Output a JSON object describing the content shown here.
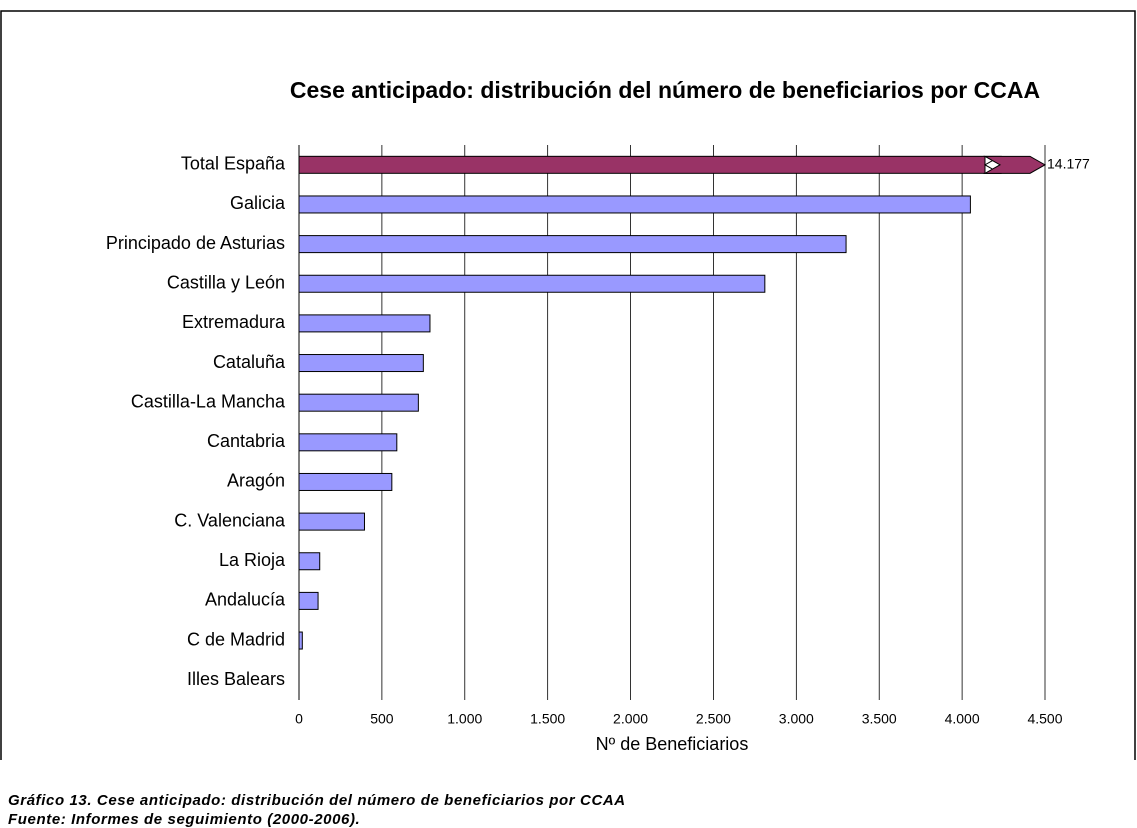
{
  "chart_data": {
    "type": "hbar",
    "title": "Cese anticipado: distribución del número de beneficiarios por CCAA",
    "categories": [
      "Total España",
      "Galicia",
      "Principado de Asturias",
      "Castilla y León",
      "Extremadura",
      "Cataluña",
      "Castilla-La Mancha",
      "Cantabria",
      "Aragón",
      "C.  Valenciana",
      "La Rioja",
      "Andalucía",
      "C de Madrid",
      "Illes Balears"
    ],
    "values": [
      14177,
      4050,
      3300,
      2810,
      790,
      750,
      720,
      590,
      560,
      395,
      125,
      115,
      20,
      0
    ],
    "value_labels": [
      "14.177",
      null,
      null,
      null,
      null,
      null,
      null,
      null,
      null,
      null,
      null,
      null,
      null,
      null
    ],
    "colors": [
      "#993366",
      "#9999ff",
      "#9999ff",
      "#9999ff",
      "#9999ff",
      "#9999ff",
      "#9999ff",
      "#9999ff",
      "#9999ff",
      "#9999ff",
      "#9999ff",
      "#9999ff",
      "#9999ff",
      "#9999ff"
    ],
    "xlabel": "Nº de Beneficiarios",
    "xlim": [
      0,
      4500
    ],
    "xticks": [
      0,
      500,
      {
        "value": 1000,
        "label": "1.000"
      },
      {
        "value": 1500,
        "label": "1.500"
      },
      {
        "value": 2000,
        "label": "2.000"
      },
      {
        "value": 2500,
        "label": "2.500"
      },
      {
        "value": 3000,
        "label": "3.000"
      },
      {
        "value": 3500,
        "label": "3.500"
      },
      {
        "value": 4000,
        "label": "4.000"
      },
      {
        "value": 4500,
        "label": "4.500"
      }
    ],
    "grid": true
  },
  "caption": [
    "Gráfico 13. Cese anticipado: distribución del número de beneficiarios por CCAA",
    "Fuente: Informes de seguimiento (2000-2006)."
  ]
}
